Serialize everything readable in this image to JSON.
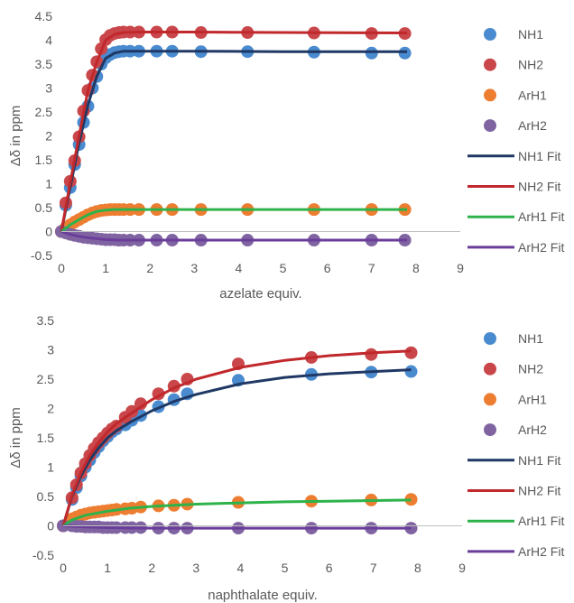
{
  "chart_data": [
    {
      "type": "scatter",
      "xlabel": "azelate equiv.",
      "ylabel": "Δδ in ppm",
      "xlim": [
        0,
        9
      ],
      "ylim": [
        -0.5,
        4.5
      ],
      "x_ticks": [
        "0",
        "1",
        "2",
        "3",
        "4",
        "5",
        "6",
        "7",
        "8",
        "9"
      ],
      "y_ticks": [
        "-0.5",
        "0",
        "0.5",
        "1",
        "1.5",
        "2",
        "2.5",
        "3",
        "3.5",
        "4",
        "4.5"
      ],
      "grid": false,
      "legend_position": "right",
      "series": [
        {
          "name": "NH1",
          "kind": "points",
          "color": "#4a8bd0",
          "x": [
            0,
            0.1,
            0.2,
            0.3,
            0.4,
            0.5,
            0.6,
            0.7,
            0.8,
            0.9,
            1.0,
            1.1,
            1.2,
            1.3,
            1.4,
            1.55,
            1.75,
            2.15,
            2.5,
            3.15,
            4.2,
            5.7,
            7.0,
            7.75
          ],
          "y": [
            0,
            0.55,
            0.92,
            1.4,
            1.82,
            2.28,
            2.62,
            3.0,
            3.24,
            3.5,
            3.63,
            3.7,
            3.74,
            3.76,
            3.77,
            3.77,
            3.77,
            3.77,
            3.77,
            3.76,
            3.76,
            3.75,
            3.73,
            3.73
          ]
        },
        {
          "name": "NH2",
          "kind": "points",
          "color": "#c9464a",
          "x": [
            0,
            0.1,
            0.2,
            0.3,
            0.4,
            0.5,
            0.6,
            0.7,
            0.8,
            0.9,
            1.0,
            1.1,
            1.2,
            1.3,
            1.4,
            1.55,
            1.75,
            2.15,
            2.5,
            3.15,
            4.2,
            5.7,
            7.0,
            7.75
          ],
          "y": [
            0,
            0.6,
            1.05,
            1.48,
            1.98,
            2.52,
            2.95,
            3.27,
            3.55,
            3.82,
            4.01,
            4.1,
            4.14,
            4.16,
            4.17,
            4.17,
            4.17,
            4.17,
            4.17,
            4.16,
            4.16,
            4.15,
            4.14,
            4.14
          ]
        },
        {
          "name": "ArH1",
          "kind": "points",
          "color": "#ed7d31",
          "x": [
            0,
            0.1,
            0.2,
            0.3,
            0.4,
            0.5,
            0.6,
            0.7,
            0.8,
            0.9,
            1.0,
            1.1,
            1.2,
            1.3,
            1.4,
            1.55,
            1.75,
            2.15,
            2.5,
            3.15,
            4.2,
            5.7,
            7.0,
            7.75
          ],
          "y": [
            0,
            0.08,
            0.14,
            0.2,
            0.25,
            0.3,
            0.35,
            0.39,
            0.42,
            0.44,
            0.45,
            0.46,
            0.46,
            0.46,
            0.46,
            0.46,
            0.46,
            0.46,
            0.46,
            0.46,
            0.46,
            0.46,
            0.46,
            0.46
          ]
        },
        {
          "name": "ArH2",
          "kind": "points",
          "color": "#8064a2",
          "x": [
            0,
            0.1,
            0.2,
            0.3,
            0.4,
            0.5,
            0.6,
            0.7,
            0.8,
            0.9,
            1.0,
            1.1,
            1.2,
            1.3,
            1.4,
            1.55,
            1.75,
            2.15,
            2.5,
            3.15,
            4.2,
            5.7,
            7.0,
            7.75
          ],
          "y": [
            0,
            -0.03,
            -0.06,
            -0.08,
            -0.1,
            -0.12,
            -0.13,
            -0.14,
            -0.15,
            -0.16,
            -0.17,
            -0.17,
            -0.17,
            -0.18,
            -0.18,
            -0.18,
            -0.18,
            -0.18,
            -0.18,
            -0.18,
            -0.18,
            -0.18,
            -0.18,
            -0.18
          ]
        },
        {
          "name": "NH1 Fit",
          "kind": "line",
          "color": "#1f3864",
          "x": [
            0,
            0.2,
            0.4,
            0.6,
            0.8,
            1.0,
            1.2,
            1.4,
            1.8,
            3,
            5,
            7.8
          ],
          "y": [
            0,
            0.92,
            1.85,
            2.65,
            3.25,
            3.62,
            3.73,
            3.77,
            3.77,
            3.77,
            3.76,
            3.76
          ]
        },
        {
          "name": "NH2 Fit",
          "kind": "line",
          "color": "#c0282c",
          "x": [
            0,
            0.2,
            0.4,
            0.6,
            0.8,
            1.0,
            1.2,
            1.4,
            1.8,
            3,
            5,
            7.8
          ],
          "y": [
            0,
            1.02,
            2.0,
            2.95,
            3.55,
            4.0,
            4.12,
            4.16,
            4.17,
            4.17,
            4.16,
            4.15
          ]
        },
        {
          "name": "ArH1 Fit",
          "kind": "line",
          "color": "#2db34a",
          "x": [
            0,
            0.2,
            0.4,
            0.6,
            0.8,
            1.0,
            1.2,
            1.5,
            3,
            7.8
          ],
          "y": [
            0,
            0.14,
            0.25,
            0.35,
            0.42,
            0.45,
            0.46,
            0.46,
            0.46,
            0.46
          ]
        },
        {
          "name": "ArH2 Fit",
          "kind": "line",
          "color": "#6a3d9a",
          "x": [
            0,
            0.2,
            0.4,
            0.6,
            0.8,
            1.0,
            1.3,
            1.8,
            3,
            7.8
          ],
          "y": [
            0,
            -0.06,
            -0.1,
            -0.13,
            -0.15,
            -0.17,
            -0.18,
            -0.18,
            -0.18,
            -0.18
          ]
        }
      ]
    },
    {
      "type": "scatter",
      "xlabel": "naphthalate equiv.",
      "ylabel": "Δδ in ppm",
      "xlim": [
        0,
        9
      ],
      "ylim": [
        -0.5,
        3.5
      ],
      "x_ticks": [
        "0",
        "1",
        "2",
        "3",
        "4",
        "5",
        "6",
        "7",
        "8",
        "9"
      ],
      "y_ticks": [
        "-0.5",
        "0",
        "0.5",
        "1",
        "1.5",
        "2",
        "2.5",
        "3",
        "3.5"
      ],
      "grid": false,
      "legend_position": "right",
      "series": [
        {
          "name": "NH1",
          "kind": "points",
          "color": "#4a8bd0",
          "x": [
            0,
            0.2,
            0.3,
            0.4,
            0.5,
            0.6,
            0.7,
            0.8,
            0.9,
            1.0,
            1.1,
            1.2,
            1.4,
            1.55,
            1.75,
            2.15,
            2.5,
            2.8,
            3.95,
            5.6,
            6.95,
            7.85
          ],
          "y": [
            0,
            0.45,
            0.65,
            0.85,
            1.0,
            1.12,
            1.25,
            1.35,
            1.45,
            1.52,
            1.6,
            1.65,
            1.72,
            1.8,
            1.88,
            2.03,
            2.15,
            2.25,
            2.48,
            2.58,
            2.62,
            2.63
          ]
        },
        {
          "name": "NH2",
          "kind": "points",
          "color": "#c9464a",
          "x": [
            0,
            0.2,
            0.3,
            0.4,
            0.5,
            0.6,
            0.7,
            0.8,
            0.9,
            1.0,
            1.1,
            1.2,
            1.4,
            1.55,
            1.75,
            2.15,
            2.5,
            2.8,
            3.95,
            5.6,
            6.95,
            7.85
          ],
          "y": [
            0,
            0.48,
            0.7,
            0.9,
            1.06,
            1.2,
            1.32,
            1.42,
            1.5,
            1.58,
            1.65,
            1.7,
            1.85,
            1.95,
            2.08,
            2.25,
            2.38,
            2.5,
            2.76,
            2.87,
            2.92,
            2.95
          ]
        },
        {
          "name": "ArH1",
          "kind": "points",
          "color": "#ed7d31",
          "x": [
            0,
            0.2,
            0.3,
            0.4,
            0.5,
            0.6,
            0.7,
            0.8,
            0.9,
            1.0,
            1.1,
            1.2,
            1.4,
            1.55,
            1.75,
            2.15,
            2.5,
            2.8,
            3.95,
            5.6,
            6.95,
            7.85
          ],
          "y": [
            0,
            0.12,
            0.15,
            0.18,
            0.2,
            0.22,
            0.23,
            0.24,
            0.25,
            0.26,
            0.27,
            0.28,
            0.29,
            0.3,
            0.32,
            0.34,
            0.35,
            0.37,
            0.4,
            0.42,
            0.44,
            0.45
          ]
        },
        {
          "name": "ArH2",
          "kind": "points",
          "color": "#8064a2",
          "x": [
            0,
            0.2,
            0.3,
            0.4,
            0.5,
            0.6,
            0.7,
            0.8,
            0.9,
            1.0,
            1.1,
            1.2,
            1.4,
            1.55,
            1.75,
            2.15,
            2.5,
            2.8,
            3.95,
            5.6,
            6.95,
            7.85
          ],
          "y": [
            0,
            0,
            -0.01,
            -0.01,
            -0.02,
            -0.02,
            -0.02,
            -0.02,
            -0.03,
            -0.03,
            -0.03,
            -0.03,
            -0.03,
            -0.03,
            -0.03,
            -0.04,
            -0.04,
            -0.04,
            -0.04,
            -0.04,
            -0.04,
            -0.04
          ]
        },
        {
          "name": "NH1 Fit",
          "kind": "line",
          "color": "#1f3864",
          "x": [
            0,
            0.2,
            0.4,
            0.6,
            0.8,
            1.0,
            1.2,
            1.5,
            2,
            2.5,
            3,
            4,
            5,
            6,
            7,
            7.85
          ],
          "y": [
            0,
            0.5,
            0.85,
            1.12,
            1.33,
            1.5,
            1.62,
            1.76,
            1.96,
            2.12,
            2.24,
            2.42,
            2.53,
            2.59,
            2.63,
            2.66
          ]
        },
        {
          "name": "NH2 Fit",
          "kind": "line",
          "color": "#c0282c",
          "x": [
            0,
            0.2,
            0.4,
            0.6,
            0.8,
            1.0,
            1.2,
            1.5,
            2,
            2.5,
            3,
            4,
            5,
            6,
            7,
            7.85
          ],
          "y": [
            0,
            0.52,
            0.9,
            1.2,
            1.42,
            1.6,
            1.74,
            1.9,
            2.15,
            2.35,
            2.5,
            2.7,
            2.82,
            2.9,
            2.95,
            2.98
          ]
        },
        {
          "name": "ArH1 Fit",
          "kind": "line",
          "color": "#2db34a",
          "x": [
            0,
            0.2,
            0.5,
            1.0,
            1.5,
            2,
            3,
            4,
            5,
            6,
            7,
            7.85
          ],
          "y": [
            0,
            0.1,
            0.18,
            0.25,
            0.3,
            0.33,
            0.37,
            0.39,
            0.41,
            0.42,
            0.43,
            0.44
          ]
        },
        {
          "name": "ArH2 Fit",
          "kind": "line",
          "color": "#6a3d9a",
          "x": [
            0,
            0.5,
            1.0,
            2,
            4,
            7.85
          ],
          "y": [
            0,
            -0.02,
            -0.03,
            -0.04,
            -0.04,
            -0.04
          ]
        }
      ]
    }
  ]
}
